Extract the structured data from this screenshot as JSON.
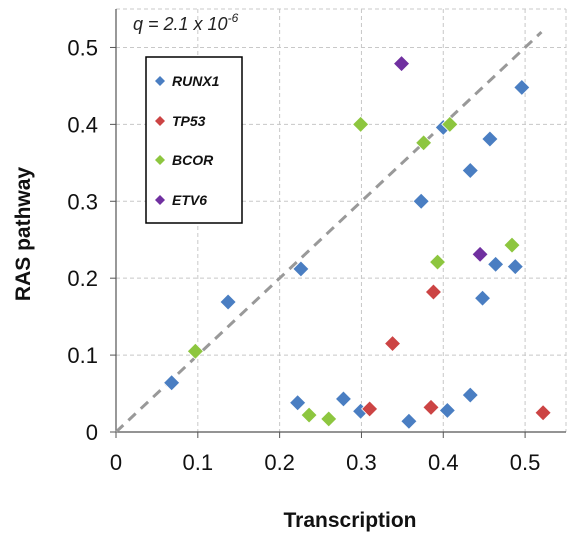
{
  "chart_data": {
    "type": "scatter",
    "xlabel": "Transcription",
    "ylabel": "RAS pathway",
    "xlim": [
      0,
      0.55
    ],
    "ylim": [
      0,
      0.55
    ],
    "x_ticks": [
      "0",
      "0.1",
      "0.2",
      "0.3",
      "0.4",
      "0.5"
    ],
    "y_ticks": [
      "0",
      "0.1",
      "0.2",
      "0.3",
      "0.4",
      "0.5"
    ],
    "grid": true,
    "annotation": {
      "prefix": "q = 2.1 x 10",
      "superscript": "-6"
    },
    "legend_position": "top-left",
    "diagonal": {
      "from": [
        0,
        0
      ],
      "to": [
        0.52,
        0.52
      ],
      "color": "#999999",
      "style": "dashed"
    },
    "series": [
      {
        "name": "RUNX1",
        "color": "#4a7ec2",
        "points": [
          [
            0.068,
            0.064
          ],
          [
            0.137,
            0.169
          ],
          [
            0.222,
            0.038
          ],
          [
            0.226,
            0.212
          ],
          [
            0.278,
            0.043
          ],
          [
            0.299,
            0.027
          ],
          [
            0.358,
            0.014
          ],
          [
            0.373,
            0.3
          ],
          [
            0.4,
            0.396
          ],
          [
            0.405,
            0.028
          ],
          [
            0.433,
            0.048
          ],
          [
            0.433,
            0.34
          ],
          [
            0.448,
            0.174
          ],
          [
            0.457,
            0.381
          ],
          [
            0.464,
            0.218
          ],
          [
            0.488,
            0.215
          ],
          [
            0.496,
            0.448
          ]
        ]
      },
      {
        "name": "TP53",
        "color": "#cc4444",
        "points": [
          [
            0.31,
            0.03
          ],
          [
            0.338,
            0.115
          ],
          [
            0.385,
            0.032
          ],
          [
            0.388,
            0.182
          ],
          [
            0.522,
            0.025
          ]
        ]
      },
      {
        "name": "BCOR",
        "color": "#8dc63f",
        "points": [
          [
            0.097,
            0.105
          ],
          [
            0.236,
            0.022
          ],
          [
            0.26,
            0.017
          ],
          [
            0.299,
            0.4
          ],
          [
            0.376,
            0.376
          ],
          [
            0.393,
            0.221
          ],
          [
            0.408,
            0.4
          ],
          [
            0.484,
            0.243
          ]
        ]
      },
      {
        "name": "ETV6",
        "color": "#7030a0",
        "points": [
          [
            0.349,
            0.479
          ],
          [
            0.445,
            0.231
          ]
        ]
      }
    ]
  }
}
